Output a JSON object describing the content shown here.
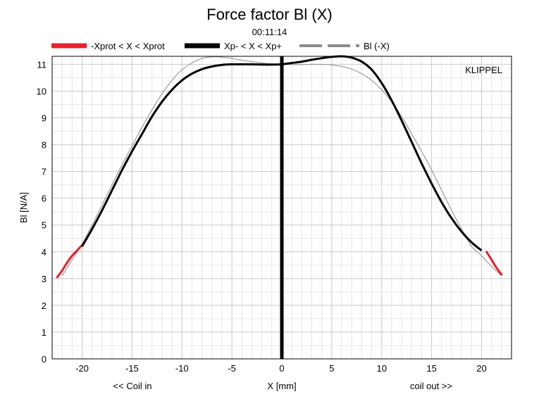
{
  "chart_data": {
    "type": "line",
    "title": "Force factor Bl (X)",
    "subtitle": "00:11:14",
    "xlabel": "X [mm]",
    "ylabel": "Bl [N/A]",
    "x_left_note": "<< Coil in",
    "x_right_note": "coil out >>",
    "watermark": "KLIPPEL",
    "xlim": [
      -23,
      23
    ],
    "ylim": [
      0,
      11.3
    ],
    "xticks": [
      -20,
      -15,
      -10,
      -5,
      0,
      5,
      10,
      15,
      20
    ],
    "yticks": [
      0,
      1,
      2,
      3,
      4,
      5,
      6,
      7,
      8,
      9,
      10,
      11
    ],
    "grid": true,
    "legend_position": "top",
    "series": [
      {
        "name": "-Xprot < X < Xprot",
        "color": "#e8202a",
        "x": [
          -22.5,
          -22.0,
          -21.5,
          -21.0,
          -20.5,
          -20.0,
          20.5,
          21.0,
          21.5,
          22.0
        ],
        "y": [
          3.05,
          3.3,
          3.6,
          3.85,
          4.05,
          4.25,
          4.0,
          3.7,
          3.4,
          3.15
        ]
      },
      {
        "name": "Xp- < X < Xp+",
        "color": "#000000",
        "x": [
          -20,
          -19,
          -18,
          -17,
          -16,
          -15,
          -14,
          -13,
          -12,
          -11,
          -10,
          -9,
          -8,
          -7,
          -6,
          -5,
          -4,
          -3,
          -2,
          -1,
          0,
          1,
          2,
          3,
          4,
          5,
          6,
          7,
          8,
          9,
          10,
          11,
          12,
          13,
          14,
          15,
          16,
          17,
          18,
          19,
          20
        ],
        "y": [
          4.2,
          4.85,
          5.55,
          6.3,
          7.05,
          7.75,
          8.4,
          9.05,
          9.6,
          10.05,
          10.4,
          10.65,
          10.82,
          10.92,
          10.98,
          11.0,
          11.0,
          11.0,
          10.99,
          10.99,
          11.0,
          11.05,
          11.1,
          11.17,
          11.23,
          11.28,
          11.3,
          11.25,
          11.1,
          10.8,
          10.3,
          9.65,
          8.9,
          8.1,
          7.3,
          6.55,
          5.85,
          5.25,
          4.75,
          4.35,
          4.05
        ]
      },
      {
        "name": "Bl (-X)",
        "color": "#8c8c8c",
        "x": [
          -22,
          -21,
          -20,
          -19,
          -18,
          -17,
          -16,
          -15,
          -14,
          -13,
          -12,
          -11,
          -10,
          -9,
          -8,
          -7,
          -6,
          -5,
          -4,
          -3,
          -2,
          -1,
          0,
          1,
          2,
          3,
          4,
          5,
          6,
          7,
          8,
          9,
          10,
          11,
          12,
          13,
          14,
          15,
          16,
          17,
          18,
          19,
          20,
          21,
          22
        ],
        "y": [
          3.1,
          3.7,
          4.3,
          5.0,
          5.75,
          6.5,
          7.25,
          7.95,
          8.65,
          9.3,
          9.9,
          10.4,
          10.8,
          11.05,
          11.22,
          11.28,
          11.27,
          11.22,
          11.15,
          11.1,
          11.05,
          11.02,
          11.0,
          10.99,
          10.99,
          11.0,
          11.0,
          10.98,
          10.92,
          10.82,
          10.65,
          10.4,
          10.05,
          9.6,
          9.05,
          8.4,
          7.75,
          7.05,
          6.3,
          5.55,
          4.85,
          4.2,
          3.85,
          3.45,
          3.1
        ]
      }
    ],
    "marker_line_x": 0
  }
}
